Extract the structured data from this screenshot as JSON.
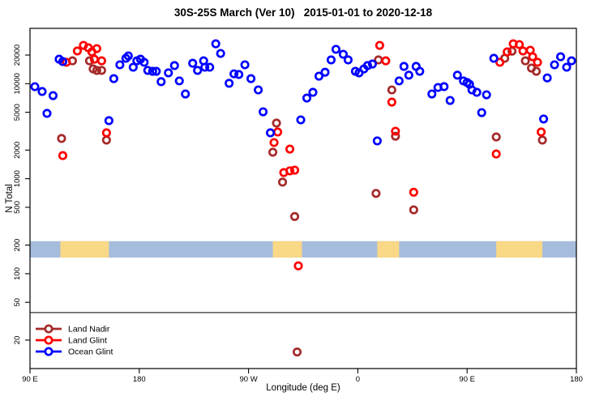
{
  "title": "30S-25S March (Ver 10)   2015-01-01 to 2020-12-18",
  "legend": {
    "items": [
      {
        "label": "Land Nadir",
        "color": "#A52A2A"
      },
      {
        "label": "Land Glint",
        "color": "#FF0000"
      },
      {
        "label": "Ocean Glint",
        "color": "#0000FF"
      }
    ]
  },
  "chart_data": {
    "type": "scatter",
    "title": "30S-25S March (Ver 10)   2015-01-01 to 2020-12-18",
    "xlabel": "Longitude (deg E)",
    "ylabel": "N Total",
    "x_axis": {
      "range_deg": [
        90,
        540
      ],
      "ticks_deg": [
        90,
        180,
        270,
        360,
        450,
        540
      ],
      "tick_labels": [
        "90 E",
        "180",
        "90 W",
        "0",
        "90 E",
        "180"
      ],
      "note": "longitude axis runs eastward from 90E and wraps past 180/0 back to 180"
    },
    "y_axis": {
      "scale": "log10",
      "ticks": [
        20,
        50,
        100,
        200,
        500,
        1000,
        2000,
        5000,
        10000,
        20000
      ],
      "tick_labels": [
        "20",
        "50",
        "100",
        "200",
        "500",
        "1000",
        "2000",
        "5000",
        "10000",
        "20000"
      ]
    },
    "threshold_line_value": 39,
    "land_ocean_band": {
      "value_range": [
        148,
        220
      ],
      "ocean_color": "#A6BCDC",
      "land_color": "#F9D886",
      "land_segments_deg": [
        [
          115,
          155
        ],
        [
          290,
          314
        ],
        [
          376,
          394
        ],
        [
          474,
          512
        ]
      ]
    },
    "series": [
      {
        "name": "Land Nadir",
        "color": "#A52A2A",
        "marker": "open-circle",
        "points": [
          [
            125,
            17400
          ],
          [
            139,
            17400
          ],
          [
            142,
            14300
          ],
          [
            145,
            13800
          ],
          [
            149,
            13800
          ],
          [
            116,
            2650
          ],
          [
            153,
            2550
          ],
          [
            293,
            3850
          ],
          [
            290,
            1900
          ],
          [
            298,
            920
          ],
          [
            308,
            400
          ],
          [
            375,
            700
          ],
          [
            377,
            17800
          ],
          [
            388,
            8600
          ],
          [
            391,
            2800
          ],
          [
            406,
            470
          ],
          [
            310,
            15
          ],
          [
            474,
            2750
          ],
          [
            481,
            18500
          ],
          [
            487,
            22000
          ],
          [
            498,
            17400
          ],
          [
            503,
            14600
          ],
          [
            507,
            13500
          ],
          [
            512,
            2550
          ]
        ]
      },
      {
        "name": "Land Glint",
        "color": "#FF0000",
        "marker": "open-circle",
        "points": [
          [
            120,
            16800
          ],
          [
            129,
            22100
          ],
          [
            134,
            25300
          ],
          [
            138,
            23900
          ],
          [
            141,
            21600
          ],
          [
            145,
            23400
          ],
          [
            143,
            18100
          ],
          [
            149,
            17400
          ],
          [
            117,
            1750
          ],
          [
            153,
            3040
          ],
          [
            291,
            2400
          ],
          [
            294,
            3100
          ],
          [
            299,
            1160
          ],
          [
            304,
            2050
          ],
          [
            304,
            1210
          ],
          [
            308,
            1230
          ],
          [
            311,
            121
          ],
          [
            378,
            25300
          ],
          [
            383,
            17400
          ],
          [
            388,
            6400
          ],
          [
            391,
            3160
          ],
          [
            406,
            720
          ],
          [
            474,
            1820
          ],
          [
            477,
            16800
          ],
          [
            483,
            21600
          ],
          [
            488,
            26300
          ],
          [
            493,
            25800
          ],
          [
            496,
            22100
          ],
          [
            502,
            22500
          ],
          [
            504,
            19200
          ],
          [
            508,
            16800
          ],
          [
            511,
            3100
          ]
        ]
      },
      {
        "name": "Ocean Glint",
        "color": "#0000FF",
        "marker": "open-circle",
        "points": [
          [
            94,
            9300
          ],
          [
            100,
            8270
          ],
          [
            104,
            4870
          ],
          [
            109,
            7490
          ],
          [
            114,
            18100
          ],
          [
            117,
            17100
          ],
          [
            155,
            4080
          ],
          [
            159,
            11300
          ],
          [
            164,
            15800
          ],
          [
            169,
            18500
          ],
          [
            171,
            19600
          ],
          [
            175,
            14900
          ],
          [
            178,
            17400
          ],
          [
            181,
            18100
          ],
          [
            184,
            16800
          ],
          [
            187,
            13800
          ],
          [
            191,
            13500
          ],
          [
            194,
            13500
          ],
          [
            198,
            10500
          ],
          [
            204,
            13000
          ],
          [
            209,
            15500
          ],
          [
            213,
            10700
          ],
          [
            218,
            7790
          ],
          [
            224,
            16400
          ],
          [
            228,
            13800
          ],
          [
            233,
            17400
          ],
          [
            234,
            14900
          ],
          [
            238,
            14900
          ],
          [
            243,
            26300
          ],
          [
            247,
            20800
          ],
          [
            254,
            10100
          ],
          [
            258,
            12700
          ],
          [
            262,
            12500
          ],
          [
            267,
            15800
          ],
          [
            272,
            11300
          ],
          [
            278,
            8600
          ],
          [
            282,
            5060
          ],
          [
            288,
            3040
          ],
          [
            313,
            4160
          ],
          [
            318,
            7060
          ],
          [
            323,
            8110
          ],
          [
            328,
            12000
          ],
          [
            333,
            13200
          ],
          [
            338,
            17800
          ],
          [
            342,
            23000
          ],
          [
            348,
            20400
          ],
          [
            352,
            17800
          ],
          [
            358,
            13500
          ],
          [
            361,
            13000
          ],
          [
            365,
            14300
          ],
          [
            368,
            15500
          ],
          [
            372,
            16100
          ],
          [
            376,
            2500
          ],
          [
            394,
            10700
          ],
          [
            398,
            15200
          ],
          [
            402,
            12300
          ],
          [
            408,
            15200
          ],
          [
            411,
            13500
          ],
          [
            421,
            7790
          ],
          [
            426,
            9120
          ],
          [
            431,
            9310
          ],
          [
            436,
            6660
          ],
          [
            442,
            12300
          ],
          [
            447,
            10700
          ],
          [
            450,
            10300
          ],
          [
            452,
            9860
          ],
          [
            454,
            8600
          ],
          [
            458,
            8110
          ],
          [
            462,
            4960
          ],
          [
            466,
            7640
          ],
          [
            472,
            18500
          ],
          [
            513,
            4250
          ],
          [
            516,
            11500
          ],
          [
            522,
            15800
          ],
          [
            527,
            19200
          ],
          [
            532,
            14900
          ],
          [
            536,
            17400
          ]
        ]
      }
    ]
  }
}
